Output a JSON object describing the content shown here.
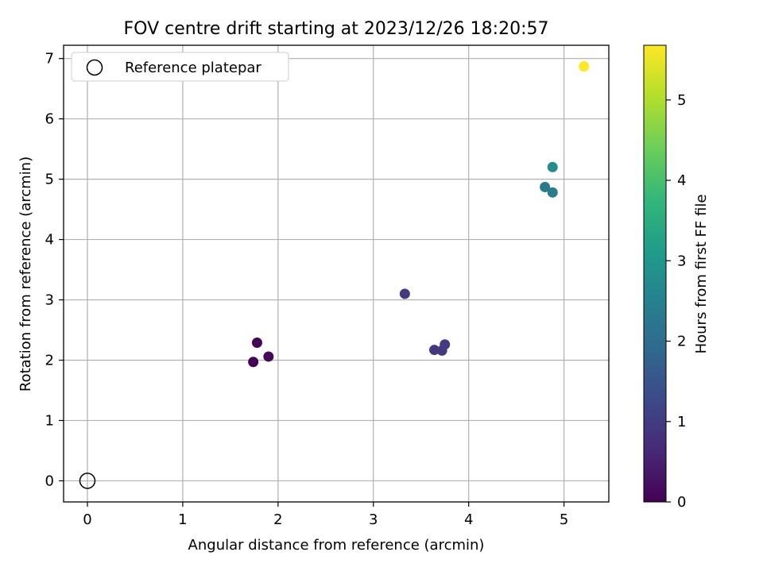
{
  "chart_data": {
    "type": "scatter",
    "title": "FOV centre drift starting at 2023/12/26 18:20:57",
    "xlabel": "Angular distance from reference (arcmin)",
    "ylabel": "Rotation from reference (arcmin)",
    "xlim": [
      -0.25,
      5.47
    ],
    "ylim": [
      -0.35,
      7.22
    ],
    "xticks": [
      0,
      1,
      2,
      3,
      4,
      5
    ],
    "yticks": [
      0,
      1,
      2,
      3,
      4,
      5,
      6,
      7
    ],
    "grid": true,
    "legend": {
      "placement": "top-left",
      "entries": [
        "Reference platepar"
      ]
    },
    "reference_point": {
      "x": 0,
      "y": 0,
      "label": "Reference platepar"
    },
    "points": [
      {
        "x": 1.74,
        "y": 1.97,
        "hours": 0.0
      },
      {
        "x": 1.78,
        "y": 2.29,
        "hours": 0.05
      },
      {
        "x": 1.9,
        "y": 2.06,
        "hours": 0.1
      },
      {
        "x": 3.33,
        "y": 3.1,
        "hours": 0.95
      },
      {
        "x": 3.64,
        "y": 2.17,
        "hours": 0.9
      },
      {
        "x": 3.72,
        "y": 2.16,
        "hours": 0.95
      },
      {
        "x": 3.75,
        "y": 2.26,
        "hours": 1.0
      },
      {
        "x": 4.8,
        "y": 4.87,
        "hours": 2.3
      },
      {
        "x": 4.88,
        "y": 4.78,
        "hours": 2.35
      },
      {
        "x": 4.88,
        "y": 5.2,
        "hours": 2.75
      },
      {
        "x": 5.21,
        "y": 6.87,
        "hours": 5.68
      }
    ],
    "colorbar": {
      "label": "Hours from first FF file",
      "colormap": "viridis",
      "range": [
        0,
        5.68
      ],
      "ticks": [
        0,
        1,
        2,
        3,
        4,
        5
      ],
      "colors": [
        "#440154",
        "#482878",
        "#3e4989",
        "#31688e",
        "#26828e",
        "#1f9e89",
        "#35b779",
        "#6ece58",
        "#b5de2b",
        "#fde725"
      ]
    }
  }
}
